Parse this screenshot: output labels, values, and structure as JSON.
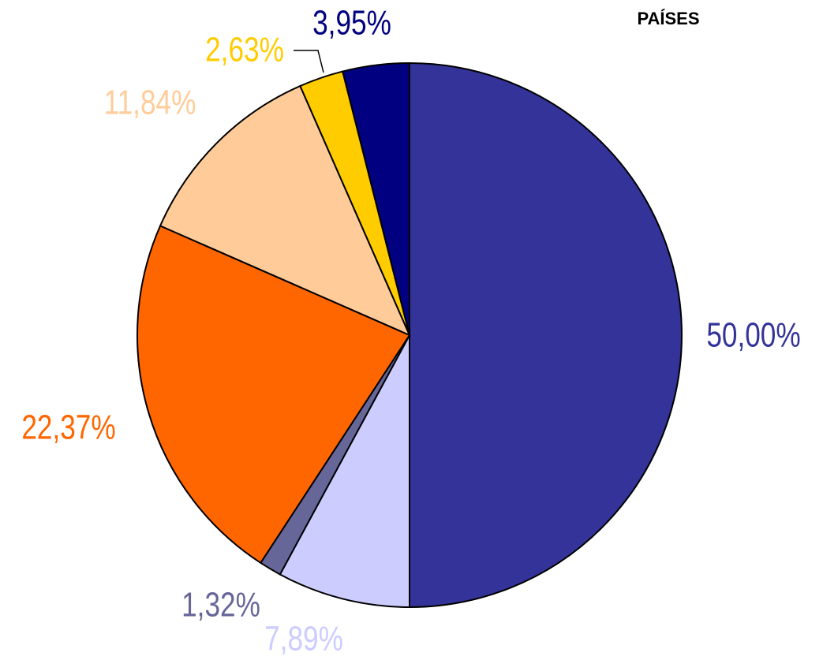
{
  "chart_data": {
    "type": "pie",
    "title": "PAÍSES",
    "values": [
      50.0,
      7.89,
      1.32,
      22.37,
      11.84,
      2.63,
      3.95
    ],
    "value_labels": [
      "50,00%",
      "7,89%",
      "1,32%",
      "22,37%",
      "11,84%",
      "2,63%",
      "3,95%"
    ],
    "colors": [
      "#333399",
      "#CCCCFF",
      "#666699",
      "#FF6600",
      "#FFCC99",
      "#FFCC00",
      "#000080"
    ]
  }
}
